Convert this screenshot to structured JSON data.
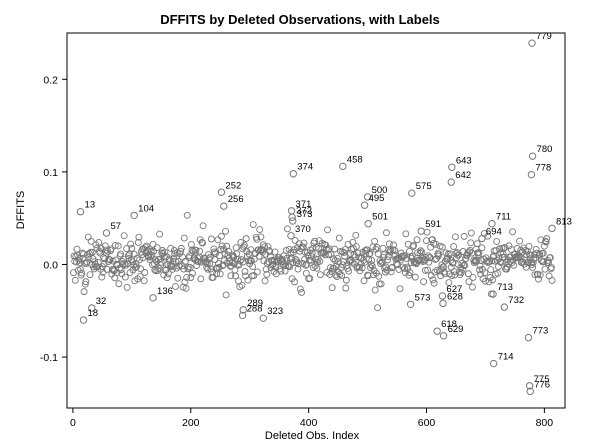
{
  "chart_data": {
    "type": "scatter",
    "title": "DFFITS by Deleted Observations, with Labels",
    "xlabel": "Deleted Obs. Index",
    "ylabel": "DFFITS",
    "xlim": [
      -10,
      835
    ],
    "ylim": [
      -0.155,
      0.25
    ],
    "xticks": [
      0,
      200,
      400,
      600,
      800
    ],
    "yticks": [
      -0.1,
      0.0,
      0.1,
      0.2
    ],
    "ytick_labels": [
      "-0.1",
      "0.0",
      "0.1",
      "0.2"
    ],
    "grid": false,
    "legend": "none",
    "marker": "open-circle",
    "marker_color": "#777777",
    "label_color": "#000000",
    "labeled_points": [
      {
        "x": 779,
        "y": 0.239,
        "label": "779"
      },
      {
        "x": 780,
        "y": 0.117,
        "label": "780"
      },
      {
        "x": 778,
        "y": 0.097,
        "label": "778"
      },
      {
        "x": 374,
        "y": 0.098,
        "label": "374"
      },
      {
        "x": 458,
        "y": 0.106,
        "label": "458"
      },
      {
        "x": 643,
        "y": 0.105,
        "label": "643"
      },
      {
        "x": 642,
        "y": 0.089,
        "label": "642"
      },
      {
        "x": 575,
        "y": 0.077,
        "label": "575"
      },
      {
        "x": 252,
        "y": 0.078,
        "label": "252"
      },
      {
        "x": 500,
        "y": 0.073,
        "label": "500"
      },
      {
        "x": 495,
        "y": 0.064,
        "label": "495"
      },
      {
        "x": 256,
        "y": 0.063,
        "label": "256"
      },
      {
        "x": 371,
        "y": 0.058,
        "label": "371"
      },
      {
        "x": 372,
        "y": 0.051,
        "label": "372"
      },
      {
        "x": 373,
        "y": 0.047,
        "label": "373"
      },
      {
        "x": 501,
        "y": 0.044,
        "label": "501"
      },
      {
        "x": 13,
        "y": 0.057,
        "label": "13"
      },
      {
        "x": 104,
        "y": 0.053,
        "label": "104"
      },
      {
        "x": 711,
        "y": 0.044,
        "label": "711"
      },
      {
        "x": 813,
        "y": 0.039,
        "label": "813"
      },
      {
        "x": 591,
        "y": 0.036,
        "label": "591"
      },
      {
        "x": 694,
        "y": 0.028,
        "label": "694"
      },
      {
        "x": 370,
        "y": 0.031,
        "label": "370"
      },
      {
        "x": 57,
        "y": 0.034,
        "label": "57"
      },
      {
        "x": 136,
        "y": -0.036,
        "label": "136"
      },
      {
        "x": 32,
        "y": -0.047,
        "label": "32"
      },
      {
        "x": 18,
        "y": -0.06,
        "label": "18"
      },
      {
        "x": 289,
        "y": -0.049,
        "label": "289"
      },
      {
        "x": 288,
        "y": -0.055,
        "label": "288"
      },
      {
        "x": 323,
        "y": -0.058,
        "label": "323"
      },
      {
        "x": 573,
        "y": -0.043,
        "label": "573"
      },
      {
        "x": 628,
        "y": -0.042,
        "label": "628"
      },
      {
        "x": 627,
        "y": -0.034,
        "label": "627"
      },
      {
        "x": 713,
        "y": -0.032,
        "label": "713"
      },
      {
        "x": 618,
        "y": -0.072,
        "label": "618"
      },
      {
        "x": 629,
        "y": -0.077,
        "label": "629"
      },
      {
        "x": 773,
        "y": -0.079,
        "label": "773"
      },
      {
        "x": 714,
        "y": -0.107,
        "label": "714"
      },
      {
        "x": 775,
        "y": -0.131,
        "label": "775"
      },
      {
        "x": 776,
        "y": -0.137,
        "label": "776"
      },
      {
        "x": 732,
        "y": -0.046,
        "label": "732"
      }
    ]
  }
}
